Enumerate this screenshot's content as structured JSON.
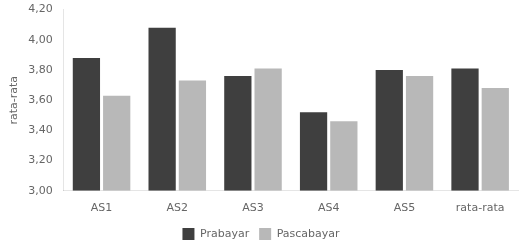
{
  "chart_data": {
    "type": "bar",
    "categories": [
      "AS1",
      "AS2",
      "AS3",
      "AS4",
      "AS5",
      "rata-rata"
    ],
    "series": [
      {
        "name": "Prabayar",
        "color": "#3f3f3f",
        "values": [
          3.88,
          4.08,
          3.76,
          3.52,
          3.8,
          3.81
        ]
      },
      {
        "name": "Pascabayar",
        "color": "#b8b8b8",
        "values": [
          3.63,
          3.73,
          3.81,
          3.46,
          3.76,
          3.68
        ]
      }
    ],
    "ylabel": "rata-rata",
    "ylim": [
      3.0,
      4.2
    ],
    "yticks": [
      {
        "value": 3.0,
        "label": "3,00"
      },
      {
        "value": 3.2,
        "label": "3,20"
      },
      {
        "value": 3.4,
        "label": "3,40"
      },
      {
        "value": 3.6,
        "label": "3,60"
      },
      {
        "value": 3.8,
        "label": "3,80"
      },
      {
        "value": 4.0,
        "label": "4,00"
      },
      {
        "value": 4.2,
        "label": "4,20"
      }
    ],
    "grid": false,
    "legend": "bottom"
  }
}
